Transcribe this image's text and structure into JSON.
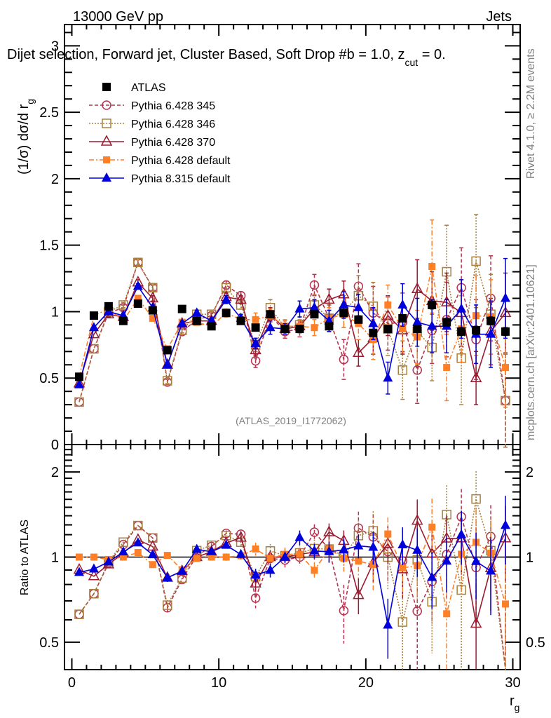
{
  "header": {
    "left": "13000 GeV pp",
    "right": "Jets",
    "subtitle_main": "Dijet selection, Forward jet, Cluster Based, Soft Drop #b = 1.0, z",
    "subtitle_sub": "cut",
    "subtitle_tail": " = 0.",
    "side_rivet": "Rivet 4.1.0, ≥ 2.2M events",
    "side_mcplots": "mcplots.cern.ch [arXiv:2401.10621]",
    "analysis_id": "(ATLAS_2019_I1772062)"
  },
  "colors": {
    "atlas": "#000000",
    "p345": "#b5334f",
    "p346": "#a8803c",
    "p370": "#9b1b30",
    "p6def": "#ff7f27",
    "p8def": "#0000dd"
  },
  "chart_data": [
    {
      "type": "scatter",
      "panel": "main",
      "title": "13000 GeV pp  Jets",
      "xlabel": "r_g",
      "ylabel": "(1/σ) dσ/d r_g",
      "xlim": [
        -0.5,
        30.5
      ],
      "ylim": [
        0,
        3.16
      ],
      "yticks": [
        0,
        0.5,
        1,
        1.5,
        2,
        2.5,
        3
      ],
      "ytick_labels": [
        "0",
        "0.5",
        "1",
        "1.5",
        "2",
        "2.5",
        "3"
      ],
      "xticks": [
        0,
        10,
        20,
        30
      ],
      "xtick_labels": [
        "0",
        "10",
        "20",
        "30"
      ],
      "legend_position": "top-left",
      "x": [
        0.5,
        1.5,
        2.5,
        3.5,
        4.5,
        5.5,
        6.5,
        7.5,
        8.5,
        9.5,
        10.5,
        11.5,
        12.5,
        13.5,
        14.5,
        15.5,
        16.5,
        17.5,
        18.5,
        19.5,
        20.5,
        21.5,
        22.5,
        23.5,
        24.5,
        25.5,
        26.5,
        27.5,
        28.5,
        29.5
      ],
      "series": [
        {
          "key": "atlas",
          "name": "ATLAS",
          "marker": "filled-square",
          "line": "none",
          "values": [
            0.51,
            0.97,
            1.04,
            0.93,
            1.06,
            1.01,
            0.71,
            1.02,
            0.93,
            0.89,
            0.99,
            0.93,
            0.88,
            0.98,
            0.87,
            0.87,
            0.98,
            0.89,
            0.99,
            0.94,
            0.84,
            0.87,
            0.95,
            0.87,
            1.05,
            0.92,
            0.85,
            0.86,
            0.93,
            0.85
          ],
          "errors": [
            0.01,
            0.01,
            0.01,
            0.01,
            0.01,
            0.01,
            0.01,
            0.01,
            0.01,
            0.01,
            0.01,
            0.02,
            0.02,
            0.02,
            0.02,
            0.02,
            0.02,
            0.02,
            0.02,
            0.02,
            0.02,
            0.02,
            0.02,
            0.02,
            0.03,
            0.03,
            0.03,
            0.03,
            0.03,
            0.03
          ]
        },
        {
          "key": "p345",
          "name": "Pythia 6.428 345",
          "marker": "open-circle",
          "line": "dashed",
          "values": [
            0.32,
            0.72,
            0.99,
            1.03,
            1.37,
            1.18,
            0.47,
            0.85,
            0.94,
            0.97,
            1.2,
            1.12,
            0.63,
            0.97,
            0.85,
            0.87,
            1.2,
            0.95,
            0.64,
            1.19,
            0.99,
            0.91,
            0.92,
            0.56,
            0.86,
            0.94,
            1.18,
            0.79,
            1.1,
            0.33
          ],
          "errors": [
            0.01,
            0.01,
            0.02,
            0.02,
            0.02,
            0.02,
            0.02,
            0.02,
            0.02,
            0.02,
            0.03,
            0.03,
            0.05,
            0.05,
            0.05,
            0.06,
            0.08,
            0.1,
            0.15,
            0.17,
            0.2,
            0.2,
            0.22,
            0.25,
            0.25,
            0.28,
            0.3,
            0.3,
            0.32,
            0.35
          ]
        },
        {
          "key": "p346",
          "name": "Pythia 6.428 346",
          "marker": "open-square",
          "line": "dotted",
          "values": [
            0.32,
            0.72,
            1.0,
            1.05,
            1.37,
            1.18,
            0.48,
            0.86,
            0.98,
            0.98,
            1.18,
            1.05,
            0.75,
            1.03,
            0.88,
            0.9,
            1.05,
            0.95,
            1.0,
            1.12,
            1.04,
            0.87,
            0.56,
            0.85,
            0.73,
            1.3,
            0.65,
            1.38,
            0.98,
            0.33
          ],
          "errors": [
            0.01,
            0.01,
            0.02,
            0.02,
            0.02,
            0.02,
            0.02,
            0.02,
            0.02,
            0.02,
            0.03,
            0.03,
            0.05,
            0.06,
            0.05,
            0.06,
            0.08,
            0.1,
            0.12,
            0.15,
            0.18,
            0.2,
            0.22,
            0.25,
            0.25,
            0.35,
            0.35,
            0.35,
            0.3,
            0.35
          ]
        },
        {
          "key": "p370",
          "name": "Pythia 6.428 370",
          "marker": "open-triangle",
          "line": "solid",
          "values": [
            0.46,
            0.83,
            0.98,
            0.96,
            1.22,
            1.1,
            0.6,
            0.91,
            0.93,
            0.93,
            1.11,
            1.09,
            0.71,
            0.98,
            0.87,
            0.89,
            1.02,
            1.09,
            1.13,
            0.69,
            0.8,
            0.97,
            0.86,
            1.17,
            1.08,
            1.07,
            0.99,
            0.5,
            0.85,
            0.99
          ],
          "errors": [
            0.01,
            0.01,
            0.02,
            0.02,
            0.02,
            0.02,
            0.02,
            0.02,
            0.02,
            0.02,
            0.03,
            0.03,
            0.04,
            0.05,
            0.04,
            0.05,
            0.06,
            0.08,
            0.1,
            0.1,
            0.12,
            0.15,
            0.18,
            0.22,
            0.22,
            0.22,
            0.25,
            0.2,
            0.25,
            0.3
          ]
        },
        {
          "key": "p6def",
          "name": "Pythia 6.428 default",
          "marker": "filled-square-small",
          "line": "dash-dot",
          "values": [
            0.51,
            0.97,
            1.02,
            0.93,
            1.1,
            0.95,
            0.72,
            0.92,
            0.92,
            0.89,
            0.99,
            0.94,
            0.94,
            0.97,
            0.89,
            0.89,
            0.88,
            0.95,
            0.98,
            0.91,
            0.79,
            1.05,
            0.87,
            0.81,
            1.34,
            0.58,
            0.87,
            0.97,
            0.96,
            0.58
          ],
          "errors": [
            0.01,
            0.01,
            0.02,
            0.02,
            0.02,
            0.02,
            0.02,
            0.02,
            0.02,
            0.02,
            0.03,
            0.03,
            0.05,
            0.05,
            0.05,
            0.05,
            0.06,
            0.08,
            0.1,
            0.12,
            0.15,
            0.15,
            0.18,
            0.2,
            0.35,
            0.25,
            0.25,
            0.3,
            0.28,
            0.3
          ]
        },
        {
          "key": "p8def",
          "name": "Pythia 8.315 default",
          "marker": "filled-triangle",
          "line": "solid",
          "values": [
            0.45,
            0.88,
            1.0,
            0.97,
            1.19,
            1.03,
            0.6,
            0.91,
            0.99,
            0.93,
            1.09,
            0.95,
            0.76,
            0.88,
            0.87,
            1.02,
            1.03,
            0.93,
            1.05,
            1.03,
            0.91,
            0.5,
            1.05,
            0.92,
            0.89,
            0.89,
            1.02,
            0.83,
            0.83,
            1.1
          ],
          "errors": [
            0.01,
            0.01,
            0.02,
            0.02,
            0.02,
            0.02,
            0.02,
            0.02,
            0.02,
            0.02,
            0.03,
            0.03,
            0.04,
            0.05,
            0.04,
            0.06,
            0.06,
            0.08,
            0.1,
            0.1,
            0.12,
            0.12,
            0.16,
            0.18,
            0.2,
            0.2,
            0.22,
            0.22,
            0.25,
            0.3
          ]
        }
      ]
    },
    {
      "type": "scatter",
      "panel": "ratio",
      "ylabel": "Ratio to ATLAS",
      "xlabel": "r_g",
      "yscale": "log",
      "ylim": [
        0.4,
        2.5
      ],
      "yticks": [
        0.5,
        1,
        2
      ],
      "ytick_labels": [
        "0.5",
        "1",
        "2"
      ],
      "xlim": [
        -0.5,
        30.5
      ],
      "xticks": [
        0,
        10,
        20,
        30
      ],
      "xtick_labels": [
        "0",
        "10",
        "20",
        "30"
      ],
      "reference_line": 1,
      "note": "ratio = series value / ATLAS value per bin"
    }
  ]
}
